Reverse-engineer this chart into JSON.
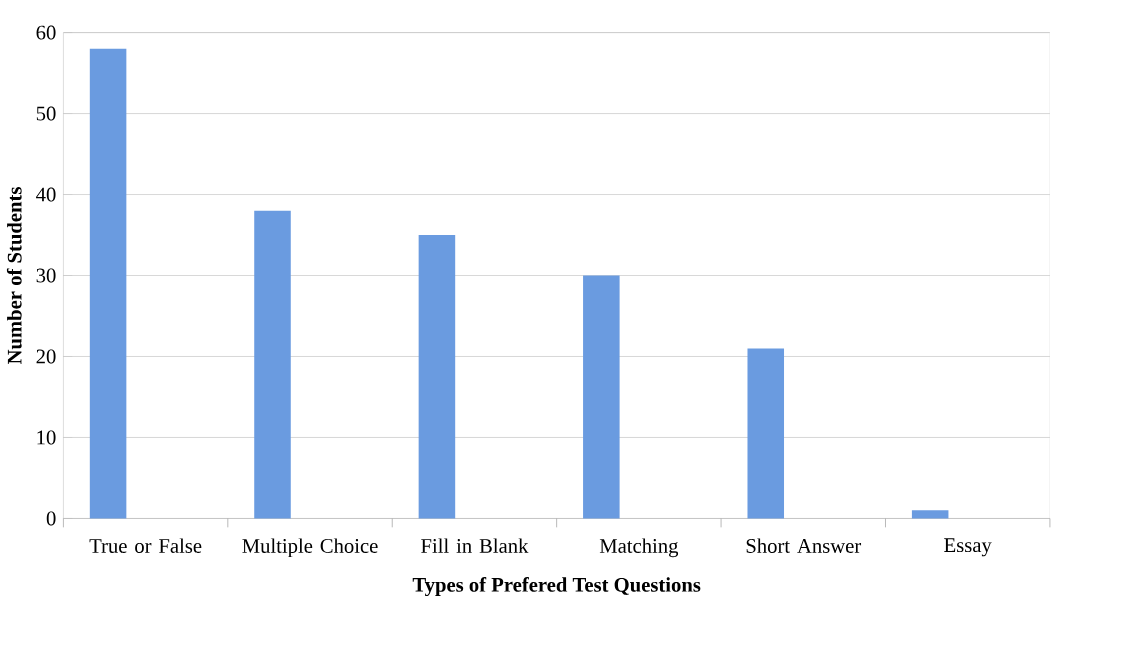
{
  "chart_data": {
    "type": "bar",
    "xlabel": "Types of Prefered Test Questions",
    "ylabel": "Number of Students",
    "categories": [
      "True or False",
      "Multiple Choice",
      "Fill in Blank",
      "Matching",
      "Short Answer",
      "Essay"
    ],
    "values": [
      58,
      38,
      35,
      30,
      21,
      1
    ],
    "color": "#6a9be0",
    "ylim": [
      0,
      60
    ],
    "yticks": [
      0,
      10,
      20,
      30,
      40,
      50,
      60
    ],
    "grid": "y"
  }
}
